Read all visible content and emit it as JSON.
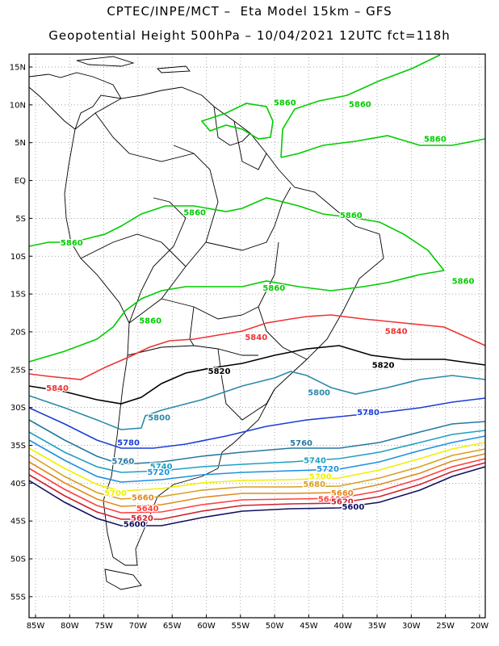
{
  "title_line1": "CPTEC/INPE/MCT –  Eta Model 15km – GFS",
  "title_line2": "Geopotential Height 500hPa – 10/04/2021 12UTC fct=118h",
  "y_tick_labels": [
    "15N",
    "10N",
    "5N",
    "EQ",
    "5S",
    "10S",
    "15S",
    "20S",
    "25S",
    "30S",
    "35S",
    "40S",
    "45S",
    "50S",
    "55S"
  ],
  "x_tick_labels": [
    "85W",
    "80W",
    "75W",
    "70W",
    "65W",
    "60W",
    "55W",
    "50W",
    "45W",
    "40W",
    "35W",
    "30W",
    "25W",
    "20W"
  ],
  "colors": {
    "c5860": "#00cc00",
    "c5840": "#ee3333",
    "c5820": "#000000",
    "c5800": "#2a8aaa",
    "c5780": "#1a3ed8",
    "c5760": "#2878a0",
    "c5740": "#20a0c0",
    "c5720": "#1e90e0",
    "c5700": "#f0f000",
    "c5680": "#d8a020",
    "c5660": "#e08a20",
    "c5640": "#ff4040",
    "c5620": "#d02030",
    "c5600": "#101060"
  },
  "contour_labels": [
    {
      "text": "5860",
      "lon": -48.5,
      "lat": 10.3,
      "color": "c5860"
    },
    {
      "text": "5860",
      "lon": -37.5,
      "lat": 10.1,
      "color": "c5860"
    },
    {
      "text": "5860",
      "lon": -26.5,
      "lat": 5.5,
      "color": "c5860"
    },
    {
      "text": "5860",
      "lon": -61.7,
      "lat": -4.2,
      "color": "c5860"
    },
    {
      "text": "5860",
      "lon": -38.8,
      "lat": -4.6,
      "color": "c5860"
    },
    {
      "text": "5860",
      "lon": -79.7,
      "lat": -8.2,
      "color": "c5860"
    },
    {
      "text": "5860",
      "lon": -22.4,
      "lat": -13.3,
      "color": "c5860"
    },
    {
      "text": "5860",
      "lon": -50.1,
      "lat": -14.2,
      "color": "c5860"
    },
    {
      "text": "5860",
      "lon": -68.2,
      "lat": -18.5,
      "color": "c5860"
    },
    {
      "text": "5840",
      "lon": -52.7,
      "lat": -20.7,
      "color": "c5840"
    },
    {
      "text": "5840",
      "lon": -32.2,
      "lat": -19.9,
      "color": "c5840"
    },
    {
      "text": "5840",
      "lon": -81.8,
      "lat": -27.4,
      "color": "c5840"
    },
    {
      "text": "5820",
      "lon": -34.1,
      "lat": -24.4,
      "color": "c5820"
    },
    {
      "text": "5820",
      "lon": -58.1,
      "lat": -25.2,
      "color": "c5820"
    },
    {
      "text": "5800",
      "lon": -43.5,
      "lat": -28.0,
      "color": "c5800"
    },
    {
      "text": "5800",
      "lon": -66.9,
      "lat": -31.3,
      "color": "c5800"
    },
    {
      "text": "5780",
      "lon": -36.3,
      "lat": -30.6,
      "color": "c5780"
    },
    {
      "text": "5780",
      "lon": -71.4,
      "lat": -34.6,
      "color": "c5780"
    },
    {
      "text": "5760",
      "lon": -72.2,
      "lat": -37.1,
      "color": "c5760"
    },
    {
      "text": "5760",
      "lon": -46.1,
      "lat": -34.7,
      "color": "c5760"
    },
    {
      "text": "5740",
      "lon": -66.6,
      "lat": -37.8,
      "color": "c5740"
    },
    {
      "text": "5740",
      "lon": -44.1,
      "lat": -37.0,
      "color": "c5740"
    },
    {
      "text": "5720",
      "lon": -67.0,
      "lat": -38.5,
      "color": "c5720"
    },
    {
      "text": "5720",
      "lon": -42.2,
      "lat": -38.1,
      "color": "c5720"
    },
    {
      "text": "5700",
      "lon": -73.3,
      "lat": -41.3,
      "color": "c5700"
    },
    {
      "text": "5700",
      "lon": -43.3,
      "lat": -39.1,
      "color": "c5700"
    },
    {
      "text": "5680",
      "lon": -44.2,
      "lat": -40.1,
      "color": "c5680"
    },
    {
      "text": "5660",
      "lon": -69.3,
      "lat": -41.9,
      "color": "c5660"
    },
    {
      "text": "5660",
      "lon": -40.1,
      "lat": -41.3,
      "color": "c5660"
    },
    {
      "text": "5640",
      "lon": -68.6,
      "lat": -43.3,
      "color": "c5640"
    },
    {
      "text": "5640",
      "lon": -42.0,
      "lat": -42.1,
      "color": "c5640"
    },
    {
      "text": "5620",
      "lon": -69.4,
      "lat": -44.6,
      "color": "c5620"
    },
    {
      "text": "5620",
      "lon": -40.1,
      "lat": -42.4,
      "color": "c5620"
    },
    {
      "text": "5600",
      "lon": -70.5,
      "lat": -45.4,
      "color": "c5600"
    },
    {
      "text": "5600",
      "lon": -38.5,
      "lat": -43.1,
      "color": "c5600"
    }
  ]
}
